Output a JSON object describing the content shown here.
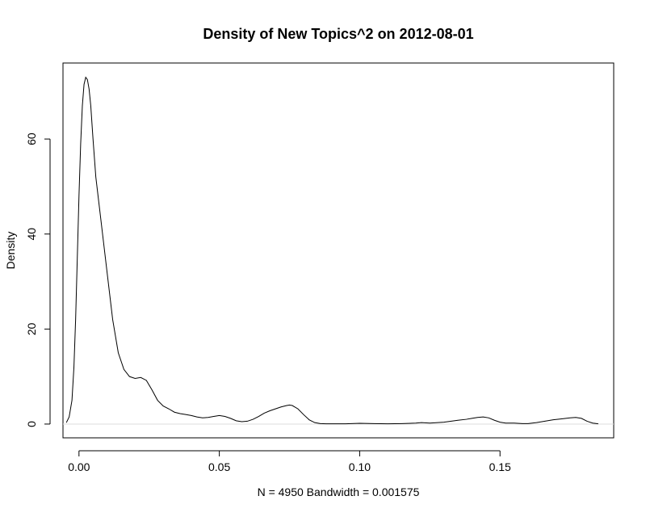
{
  "chart_data": {
    "type": "line",
    "title": "Density of New Topics^2 on 2012-08-01",
    "xlabel": "N = 4950   Bandwidth = 0.001575",
    "ylabel": "Density",
    "xlim": [
      -0.0057,
      0.1905
    ],
    "ylim": [
      -2.9,
      76.0
    ],
    "x_ticks": [
      0.0,
      0.05,
      0.1,
      0.15
    ],
    "x_tick_labels": [
      "0.00",
      "0.05",
      "0.10",
      "0.15"
    ],
    "y_ticks": [
      0,
      20,
      40,
      60
    ],
    "y_tick_labels": [
      "0",
      "20",
      "40",
      "60"
    ],
    "grid": false,
    "legend": "none",
    "zero_line": true,
    "colors": {
      "line": "#000000",
      "zero_line": "#dddddd",
      "frame": "#000000"
    },
    "series": [
      {
        "x": [
          -0.0045,
          -0.0035,
          -0.0025,
          -0.0018,
          -0.0012,
          -0.0006,
          0.0,
          0.0006,
          0.0012,
          0.0018,
          0.0024,
          0.003,
          0.0036,
          0.0042,
          0.005,
          0.006,
          0.008,
          0.01,
          0.012,
          0.014,
          0.016,
          0.018,
          0.02,
          0.022,
          0.024,
          0.026,
          0.028,
          0.03,
          0.032,
          0.034,
          0.036,
          0.038,
          0.04,
          0.042,
          0.044,
          0.046,
          0.048,
          0.05,
          0.052,
          0.054,
          0.056,
          0.058,
          0.06,
          0.062,
          0.064,
          0.066,
          0.068,
          0.07,
          0.072,
          0.074,
          0.075,
          0.076,
          0.078,
          0.08,
          0.082,
          0.084,
          0.086,
          0.088,
          0.09,
          0.095,
          0.1,
          0.105,
          0.11,
          0.115,
          0.12,
          0.122,
          0.125,
          0.13,
          0.135,
          0.138,
          0.14,
          0.142,
          0.144,
          0.146,
          0.148,
          0.15,
          0.152,
          0.155,
          0.158,
          0.16,
          0.163,
          0.166,
          0.169,
          0.172,
          0.175,
          0.177,
          0.179,
          0.181,
          0.183,
          0.185
        ],
        "y": [
          0.3,
          1.5,
          5.0,
          12.0,
          22.0,
          35.0,
          48.0,
          59.0,
          67.0,
          71.5,
          73.0,
          72.5,
          70.5,
          67.0,
          60.0,
          52.0,
          42.0,
          32.0,
          22.0,
          15.0,
          11.5,
          10.0,
          9.6,
          9.8,
          9.2,
          7.2,
          5.0,
          3.8,
          3.2,
          2.5,
          2.2,
          2.0,
          1.8,
          1.5,
          1.3,
          1.4,
          1.6,
          1.8,
          1.6,
          1.2,
          0.7,
          0.5,
          0.6,
          1.0,
          1.6,
          2.3,
          2.8,
          3.2,
          3.6,
          3.9,
          4.0,
          3.9,
          3.2,
          2.0,
          0.9,
          0.3,
          0.1,
          0.05,
          0.05,
          0.05,
          0.15,
          0.1,
          0.05,
          0.1,
          0.2,
          0.3,
          0.2,
          0.4,
          0.8,
          1.0,
          1.2,
          1.4,
          1.5,
          1.3,
          0.8,
          0.4,
          0.2,
          0.2,
          0.1,
          0.1,
          0.3,
          0.6,
          0.9,
          1.1,
          1.3,
          1.4,
          1.2,
          0.6,
          0.2,
          0.05
        ]
      }
    ]
  }
}
